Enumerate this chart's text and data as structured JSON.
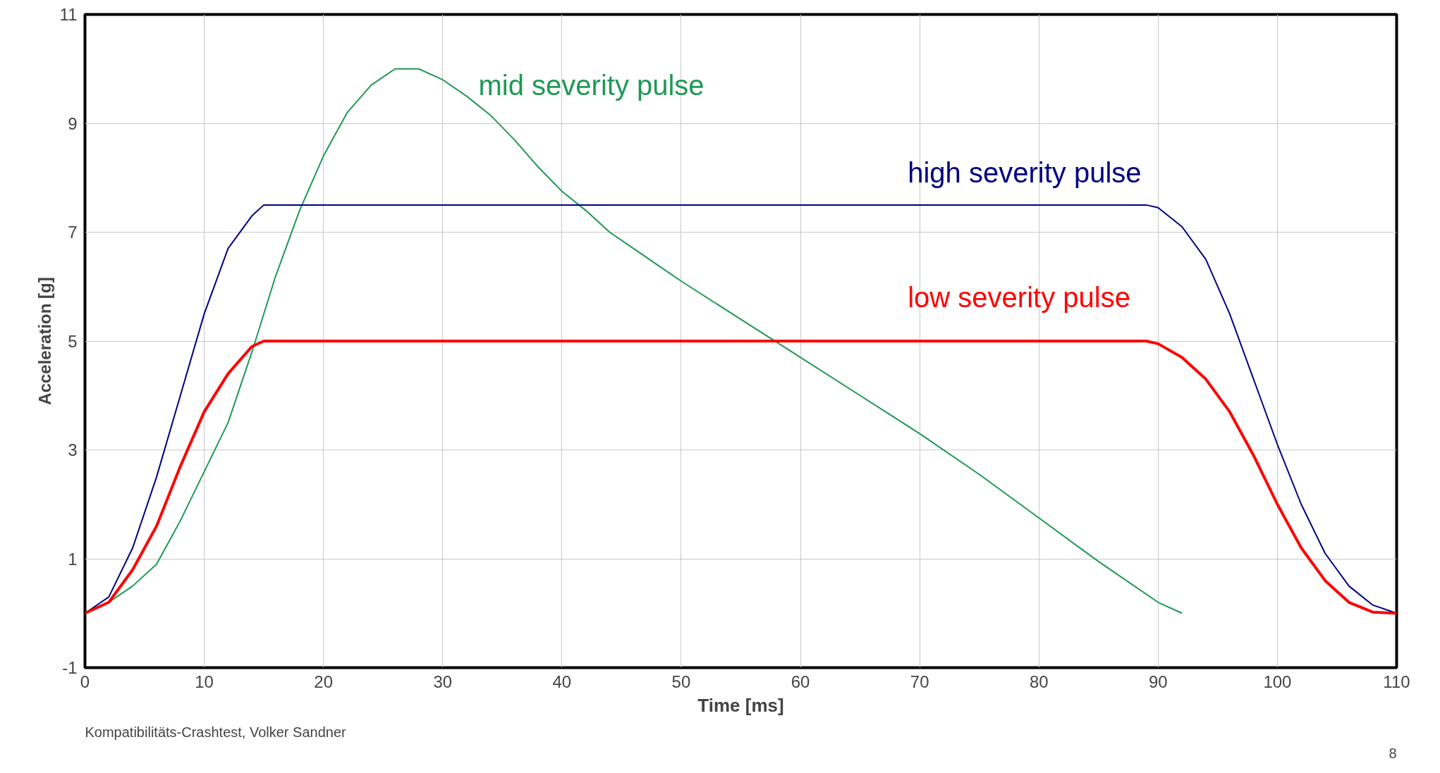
{
  "chart_data": {
    "type": "line",
    "xlabel": "Time [ms]",
    "ylabel": "Acceleration [g]",
    "xlim": [
      0,
      110
    ],
    "ylim": [
      -1,
      11
    ],
    "xticks": [
      0,
      10,
      20,
      30,
      40,
      50,
      60,
      70,
      80,
      90,
      100,
      110
    ],
    "yticks": [
      -1,
      1,
      3,
      5,
      7,
      9,
      11
    ],
    "grid": true,
    "marker": "none",
    "line_style": "solid",
    "annotations": [
      "Kompatibilitäts-Crashtest, Volker Sandner",
      "8"
    ],
    "series": [
      {
        "name": "mid severity pulse",
        "color": "#1f9955",
        "x": [
          0,
          2,
          4,
          6,
          8,
          10,
          12,
          14,
          16,
          18,
          20,
          22,
          24,
          26,
          28,
          30,
          32,
          34,
          36,
          38,
          40,
          42,
          44,
          46,
          48,
          50,
          55,
          60,
          65,
          70,
          75,
          80,
          85,
          90,
          92
        ],
        "values": [
          0,
          0.2,
          0.5,
          0.9,
          1.7,
          2.6,
          3.5,
          4.8,
          6.2,
          7.4,
          8.4,
          9.2,
          9.7,
          10,
          10,
          9.8,
          9.5,
          9.15,
          8.7,
          8.2,
          7.75,
          7.4,
          7.0,
          6.7,
          6.4,
          6.1,
          5.4,
          4.7,
          4.0,
          3.3,
          2.55,
          1.75,
          0.95,
          0.2,
          0
        ]
      },
      {
        "name": "high severity pulse",
        "color": "#000080",
        "x": [
          0,
          2,
          4,
          6,
          8,
          10,
          12,
          14,
          15,
          89,
          90,
          92,
          94,
          96,
          98,
          100,
          102,
          104,
          106,
          108,
          110
        ],
        "values": [
          0,
          0.3,
          1.2,
          2.5,
          4,
          5.5,
          6.7,
          7.3,
          7.5,
          7.5,
          7.45,
          7.1,
          6.5,
          5.5,
          4.3,
          3.1,
          2.0,
          1.1,
          0.5,
          0.15,
          0
        ]
      },
      {
        "name": "low severity pulse",
        "color": "#ff0000",
        "x": [
          0,
          2,
          4,
          6,
          8,
          10,
          12,
          14,
          15,
          89,
          90,
          92,
          94,
          96,
          98,
          100,
          102,
          104,
          106,
          108,
          110
        ],
        "values": [
          0,
          0.2,
          0.8,
          1.6,
          2.7,
          3.7,
          4.4,
          4.9,
          5,
          5,
          4.95,
          4.7,
          4.3,
          3.7,
          2.9,
          2.0,
          1.2,
          0.6,
          0.2,
          0.02,
          0
        ]
      }
    ]
  }
}
